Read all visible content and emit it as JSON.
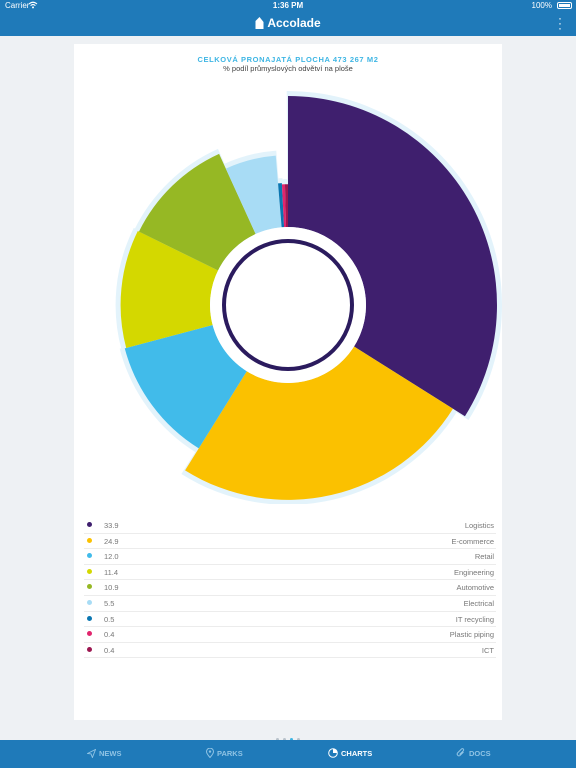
{
  "status_bar": {
    "carrier": "Carrier",
    "time": "1:36 PM",
    "battery": "100%"
  },
  "nav": {
    "title": "Accolade"
  },
  "chart_data": {
    "type": "pie",
    "title": "CELKOVÁ PRONAJATÁ PLOCHA 473 267 M2",
    "subtitle": "% podíl průmyslových odvětví na ploše",
    "categories": [
      "Logistics",
      "E-commerce",
      "Retail",
      "Engineering",
      "Automotive",
      "Electrical",
      "IT recycling",
      "Plastic piping",
      "ICT"
    ],
    "values": [
      33.9,
      24.9,
      12.0,
      11.4,
      10.9,
      5.5,
      0.5,
      0.4,
      0.4
    ],
    "value_labels": [
      "33.9",
      "24.9",
      "12.0",
      "11.4",
      "10.9",
      "5.5",
      "0.5",
      "0.4",
      "0.4"
    ],
    "colors": [
      "#3f1f6e",
      "#fbc100",
      "#41bbea",
      "#d4d800",
      "#96b824",
      "#a8dcf5",
      "#0a76b1",
      "#e1256d",
      "#9c1750"
    ],
    "legend_placement": "bottom"
  },
  "pager": {
    "count": 4,
    "active": 2
  },
  "tabs": [
    {
      "label": "NEWS",
      "icon": "send-icon",
      "active": false
    },
    {
      "label": "PARKS",
      "icon": "map-pin-icon",
      "active": false
    },
    {
      "label": "CHARTS",
      "icon": "pie-chart-icon",
      "active": true
    },
    {
      "label": "DOCS",
      "icon": "paperclip-icon",
      "active": false
    }
  ]
}
